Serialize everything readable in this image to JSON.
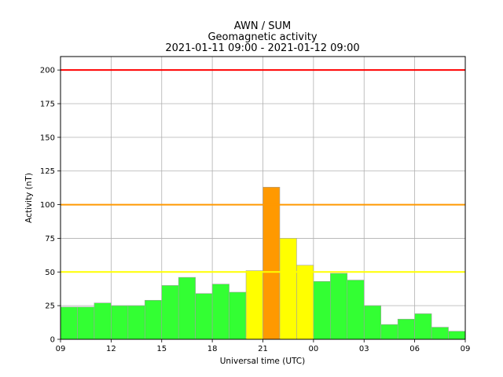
{
  "chart_data": {
    "type": "bar",
    "title_lines": [
      "AWN / SUM",
      "Geomagnetic activity",
      "2021-01-11 09:00 - 2021-01-12 09:00"
    ],
    "xlabel": "Universal time (UTC)",
    "ylabel": "Activity (nT)",
    "ylim": [
      0,
      210
    ],
    "xlim_hours": [
      0,
      24
    ],
    "y_ticks": [
      0,
      25,
      50,
      75,
      100,
      125,
      150,
      175,
      200
    ],
    "x_ticks": [
      {
        "hour": 0,
        "label": "09"
      },
      {
        "hour": 3,
        "label": "12"
      },
      {
        "hour": 6,
        "label": "15"
      },
      {
        "hour": 9,
        "label": "18"
      },
      {
        "hour": 12,
        "label": "21"
      },
      {
        "hour": 15,
        "label": "00"
      },
      {
        "hour": 18,
        "label": "03"
      },
      {
        "hour": 21,
        "label": "06"
      },
      {
        "hour": 24,
        "label": "09"
      }
    ],
    "grid": true,
    "thresholds": [
      {
        "value": 50,
        "color": "#ffff00"
      },
      {
        "value": 100,
        "color": "#ff9900"
      },
      {
        "value": 200,
        "color": "#ff0000"
      }
    ],
    "bars": [
      {
        "hour": 0,
        "value": 24,
        "color": "#33ff33"
      },
      {
        "hour": 1,
        "value": 24,
        "color": "#33ff33"
      },
      {
        "hour": 2,
        "value": 27,
        "color": "#33ff33"
      },
      {
        "hour": 3,
        "value": 25,
        "color": "#33ff33"
      },
      {
        "hour": 4,
        "value": 25,
        "color": "#33ff33"
      },
      {
        "hour": 5,
        "value": 29,
        "color": "#33ff33"
      },
      {
        "hour": 6,
        "value": 40,
        "color": "#33ff33"
      },
      {
        "hour": 7,
        "value": 46,
        "color": "#33ff33"
      },
      {
        "hour": 8,
        "value": 34,
        "color": "#33ff33"
      },
      {
        "hour": 9,
        "value": 41,
        "color": "#33ff33"
      },
      {
        "hour": 10,
        "value": 35,
        "color": "#33ff33"
      },
      {
        "hour": 11,
        "value": 51,
        "color": "#ffff00"
      },
      {
        "hour": 12,
        "value": 113,
        "color": "#ff9900"
      },
      {
        "hour": 13,
        "value": 75,
        "color": "#ffff00"
      },
      {
        "hour": 14,
        "value": 55,
        "color": "#ffff00"
      },
      {
        "hour": 15,
        "value": 43,
        "color": "#33ff33"
      },
      {
        "hour": 16,
        "value": 49,
        "color": "#33ff33"
      },
      {
        "hour": 17,
        "value": 44,
        "color": "#33ff33"
      },
      {
        "hour": 18,
        "value": 25,
        "color": "#33ff33"
      },
      {
        "hour": 19,
        "value": 11,
        "color": "#33ff33"
      },
      {
        "hour": 20,
        "value": 15,
        "color": "#33ff33"
      },
      {
        "hour": 21,
        "value": 19,
        "color": "#33ff33"
      },
      {
        "hour": 22,
        "value": 9,
        "color": "#33ff33"
      },
      {
        "hour": 23,
        "value": 6,
        "color": "#33ff33"
      }
    ]
  }
}
